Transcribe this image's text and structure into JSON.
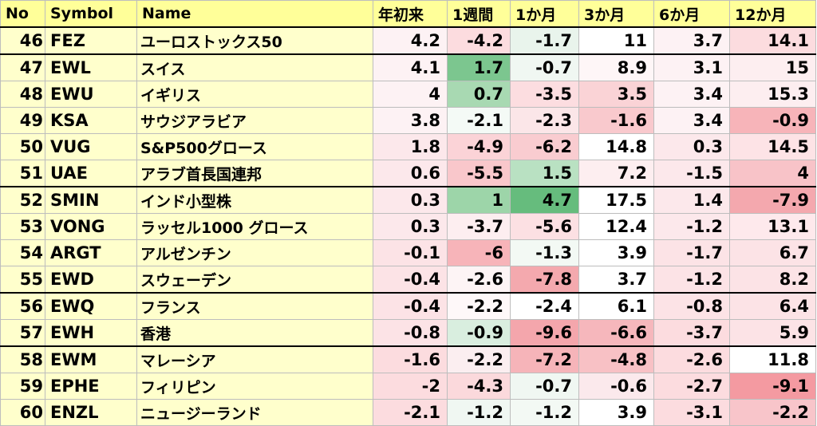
{
  "headers": [
    "No",
    "Symbol",
    "Name",
    "年初来",
    "1週間",
    "1か月",
    "3か月",
    "6か月",
    "12か月"
  ],
  "rows": [
    {
      "no": "46",
      "symbol": "FEZ",
      "name": "ユーロストックス50",
      "values": [
        "4.2",
        "-4.2",
        "-1.7",
        "11",
        "3.7",
        "14.1"
      ],
      "colors": [
        "#fdf2f4",
        "#fcdcdf",
        "#e9f4ec",
        "#ffffff",
        "#fdf2f4",
        "#fcdcdf"
      ]
    },
    {
      "no": "47",
      "symbol": "EWL",
      "name": "スイス",
      "values": [
        "4.1",
        "1.7",
        "-0.7",
        "8.9",
        "3.1",
        "15"
      ],
      "colors": [
        "#fdf2f4",
        "#7cc68f",
        "#f0f7f2",
        "#fef6f7",
        "#fdf2f4",
        "#fdeef0"
      ]
    },
    {
      "no": "48",
      "symbol": "EWU",
      "name": "イギリス",
      "values": [
        "4",
        "0.7",
        "-3.5",
        "3.5",
        "3.4",
        "15.3"
      ],
      "colors": [
        "#fdf2f4",
        "#a8d9b2",
        "#fcdde0",
        "#fad3d6",
        "#fdf2f4",
        "#fdeef0"
      ]
    },
    {
      "no": "49",
      "symbol": "KSA",
      "name": "サウジアラビア",
      "values": [
        "3.8",
        "-2.1",
        "-2.3",
        "-1.6",
        "3.4",
        "-0.9"
      ],
      "colors": [
        "#fdf2f4",
        "#f4faf6",
        "#fbe6e8",
        "#f9c9cd",
        "#fdf2f4",
        "#f7b4b9"
      ]
    },
    {
      "no": "50",
      "symbol": "VUG",
      "name": "S&P500グロース",
      "values": [
        "1.8",
        "-4.9",
        "-6.2",
        "14.8",
        "0.3",
        "14.5"
      ],
      "colors": [
        "#fce8eb",
        "#fbd3d7",
        "#f9ccd0",
        "#ffffff",
        "#fce8eb",
        "#fde3e6"
      ]
    },
    {
      "no": "51",
      "symbol": "UAE",
      "name": "アラブ首長国連邦",
      "values": [
        "0.6",
        "-5.5",
        "1.5",
        "7.2",
        "-1.5",
        "4"
      ],
      "colors": [
        "#fce8eb",
        "#f9c7cb",
        "#b9e1c2",
        "#fdeef0",
        "#fce8eb",
        "#f8c3c8"
      ]
    },
    {
      "no": "52",
      "symbol": "SMIN",
      "name": "インド小型株",
      "values": [
        "0.3",
        "1",
        "4.7",
        "17.5",
        "1.4",
        "-7.9"
      ],
      "colors": [
        "#fce8eb",
        "#9dd5a9",
        "#66bc7d",
        "#ffffff",
        "#fce8eb",
        "#f4a8ae"
      ]
    },
    {
      "no": "53",
      "symbol": "VONG",
      "name": "ラッセル1000 グロース",
      "values": [
        "0.3",
        "-3.7",
        "-5.6",
        "12.4",
        "-1.2",
        "13.1"
      ],
      "colors": [
        "#fce8eb",
        "#fdeef0",
        "#fce0e3",
        "#ffffff",
        "#fce8eb",
        "#fee9ec"
      ]
    },
    {
      "no": "54",
      "symbol": "ARGT",
      "name": "アルゼンチン",
      "values": [
        "-0.1",
        "-6",
        "-1.3",
        "3.9",
        "-1.7",
        "6.7"
      ],
      "colors": [
        "#fce3e6",
        "#f7b4b9",
        "#f3f9f4",
        "#ffffff",
        "#fce3e6",
        "#fce3e6"
      ]
    },
    {
      "no": "55",
      "symbol": "EWD",
      "name": "スウェーデン",
      "values": [
        "-0.4",
        "-2.6",
        "-7.8",
        "3.7",
        "-1.2",
        "8.2"
      ],
      "colors": [
        "#fce3e6",
        "#fdf4f5",
        "#f4a9ae",
        "#ffffff",
        "#fce3e6",
        "#fce3e6"
      ]
    },
    {
      "no": "56",
      "symbol": "EWQ",
      "name": "フランス",
      "values": [
        "-0.4",
        "-2.2",
        "-2.4",
        "6.1",
        "-0.8",
        "6.4"
      ],
      "colors": [
        "#fce3e6",
        "#fef8f9",
        "#ffffff",
        "#ffffff",
        "#fce3e6",
        "#fce3e6"
      ]
    },
    {
      "no": "57",
      "symbol": "EWH",
      "name": "香港",
      "values": [
        "-0.8",
        "-0.9",
        "-9.6",
        "-6.6",
        "-3.7",
        "5.9"
      ],
      "colors": [
        "#fce3e6",
        "#d9eedf",
        "#f4a6ac",
        "#f6b7bc",
        "#fcdcdf",
        "#fce3e6"
      ]
    },
    {
      "no": "58",
      "symbol": "EWM",
      "name": "マレーシア",
      "values": [
        "-1.6",
        "-2.2",
        "-7.2",
        "-4.8",
        "-2.6",
        "11.8"
      ],
      "colors": [
        "#fcdcdf",
        "#fbeef0",
        "#f6b4b9",
        "#f8c1c5",
        "#fcdcdf",
        "#ffffff"
      ]
    },
    {
      "no": "59",
      "symbol": "EPHE",
      "name": "フィリピン",
      "values": [
        "-2",
        "-4.3",
        "-0.7",
        "-0.6",
        "-2.7",
        "-9.1"
      ],
      "colors": [
        "#fcdcdf",
        "#fbd9dc",
        "#f0f7f2",
        "#fbe9ec",
        "#fcdcdf",
        "#f49aa1"
      ]
    },
    {
      "no": "60",
      "symbol": "ENZL",
      "name": "ニュージーランド",
      "values": [
        "-2.1",
        "-1.2",
        "-1.2",
        "3.9",
        "-3.1",
        "-2.2"
      ],
      "colors": [
        "#fcdcdf",
        "#f0f7f2",
        "#f3f9f4",
        "#ffffff",
        "#fcdcdf",
        "#f8c5ca"
      ]
    }
  ]
}
